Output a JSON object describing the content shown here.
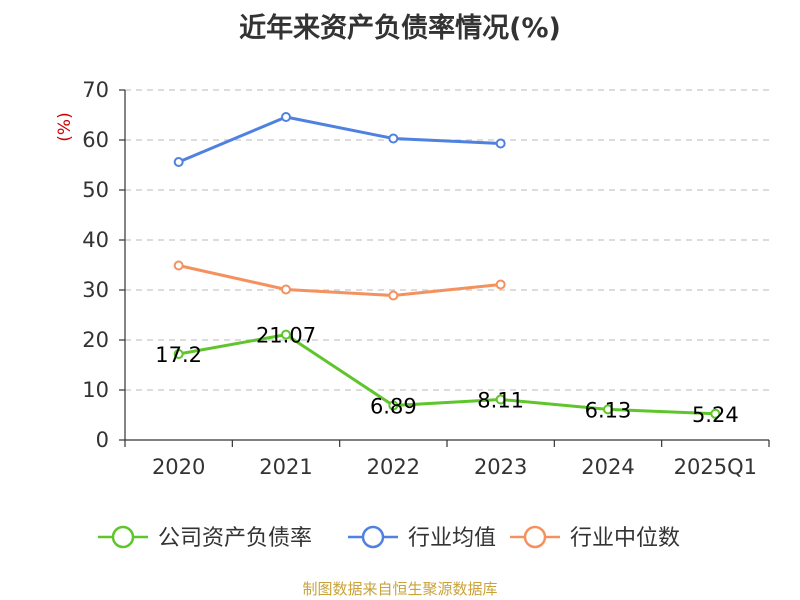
{
  "title": "近年来资产负债率情况(%)",
  "source": "制图数据来自恒生聚源数据库",
  "chart_data": {
    "type": "line",
    "title": "近年来资产负债率情况(%)",
    "ylabel": "(%)",
    "xlabel": "",
    "categories": [
      "2020",
      "2021",
      "2022",
      "2023",
      "2024",
      "2025Q1"
    ],
    "ylim": [
      0,
      70
    ],
    "yticks": [
      0,
      10,
      20,
      30,
      40,
      50,
      60,
      70
    ],
    "grid": "horizontal dashed",
    "legend": "bottom",
    "series": [
      {
        "name": "公司资产负债率",
        "color": "#5ec52b",
        "values": [
          17.2,
          21.07,
          6.89,
          8.11,
          6.13,
          5.24
        ],
        "labels": [
          "17.2",
          "21.07",
          "6.89",
          "8.11",
          "6.13",
          "5.24"
        ]
      },
      {
        "name": "行业均值",
        "color": "#4f81e0",
        "values": [
          55.6,
          64.6,
          60.3,
          59.3,
          null,
          null
        ]
      },
      {
        "name": "行业中位数",
        "color": "#f5915e",
        "values": [
          34.9,
          30.1,
          28.9,
          31.1,
          null,
          null
        ]
      }
    ]
  }
}
